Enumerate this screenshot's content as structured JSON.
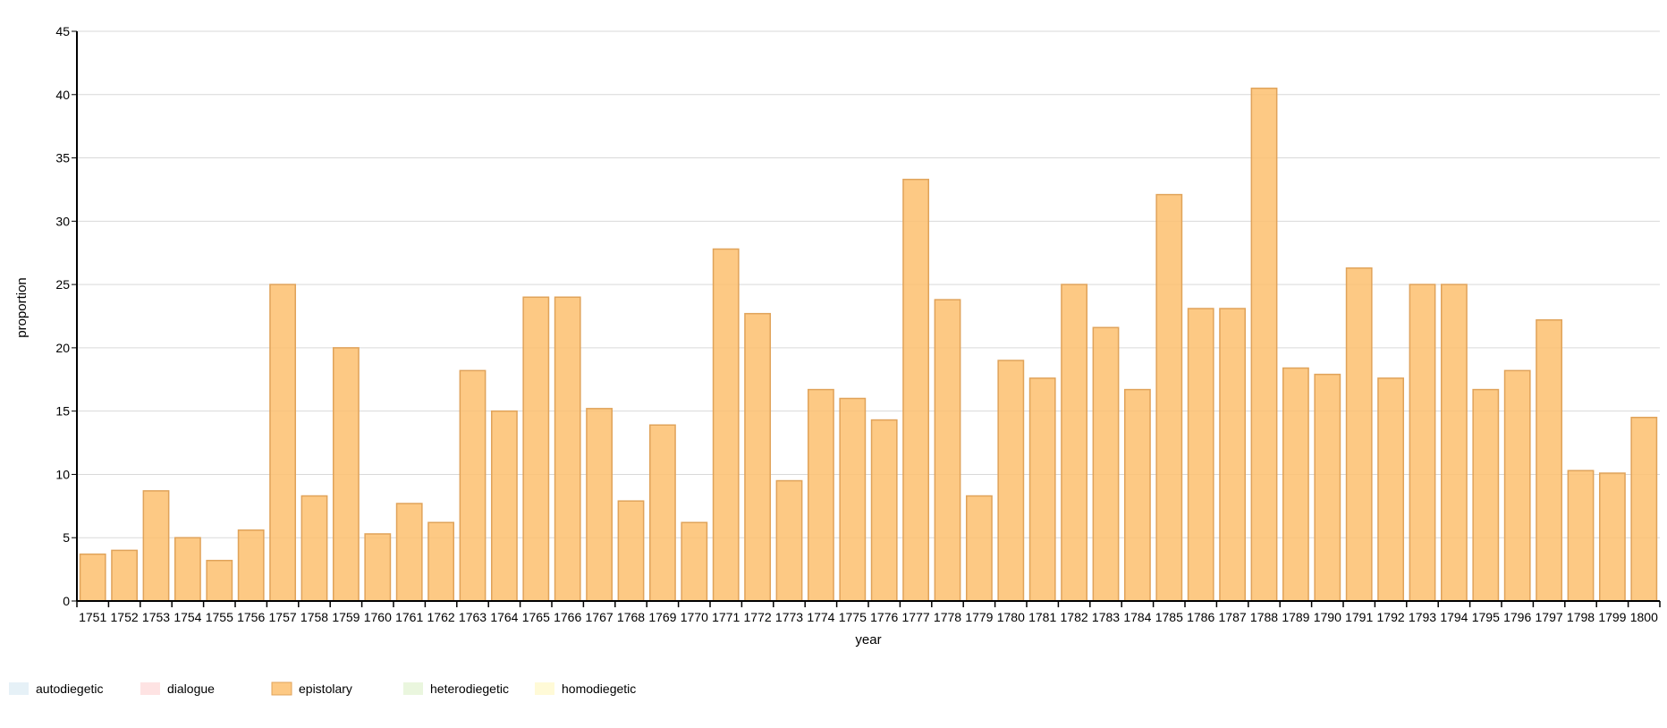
{
  "chart_data": {
    "type": "bar",
    "xlabel": "year",
    "ylabel": "proportion",
    "ylim": [
      0,
      45
    ],
    "yticks": [
      0,
      5,
      10,
      15,
      20,
      25,
      30,
      35,
      40,
      45
    ],
    "grid": true,
    "legend_position": "bottom-left",
    "categories": [
      "1751",
      "1752",
      "1753",
      "1754",
      "1755",
      "1756",
      "1757",
      "1758",
      "1759",
      "1760",
      "1761",
      "1762",
      "1763",
      "1764",
      "1765",
      "1766",
      "1767",
      "1768",
      "1769",
      "1770",
      "1771",
      "1772",
      "1773",
      "1774",
      "1775",
      "1776",
      "1777",
      "1778",
      "1779",
      "1780",
      "1781",
      "1782",
      "1783",
      "1784",
      "1785",
      "1786",
      "1787",
      "1788",
      "1789",
      "1790",
      "1791",
      "1792",
      "1793",
      "1794",
      "1795",
      "1796",
      "1797",
      "1798",
      "1799",
      "1800"
    ],
    "series": [
      {
        "name": "epistolary",
        "color": "#fdbf6f",
        "stroke": "#e0a35a",
        "values": [
          3.7,
          4.0,
          8.7,
          5.0,
          3.2,
          5.6,
          25.0,
          8.3,
          20.0,
          5.3,
          7.7,
          6.2,
          18.2,
          15.0,
          24.0,
          24.0,
          15.2,
          7.9,
          13.9,
          6.2,
          27.8,
          22.7,
          9.5,
          16.7,
          16.0,
          14.3,
          33.3,
          23.8,
          8.3,
          19.0,
          17.6,
          25.0,
          21.6,
          16.7,
          32.1,
          23.1,
          23.1,
          40.5,
          18.4,
          17.9,
          26.3,
          17.6,
          25.0,
          25.0,
          16.7,
          18.2,
          22.2,
          10.3,
          10.1,
          14.5
        ]
      }
    ],
    "legend": [
      {
        "label": "autodiegetic",
        "color": "#a6cee3"
      },
      {
        "label": "dialogue",
        "color": "#fb9a99"
      },
      {
        "label": "epistolary",
        "color": "#fdbf6f"
      },
      {
        "label": "heterodiegetic",
        "color": "#b2df8a"
      },
      {
        "label": "homodiegetic",
        "color": "#ffed6f"
      }
    ]
  }
}
